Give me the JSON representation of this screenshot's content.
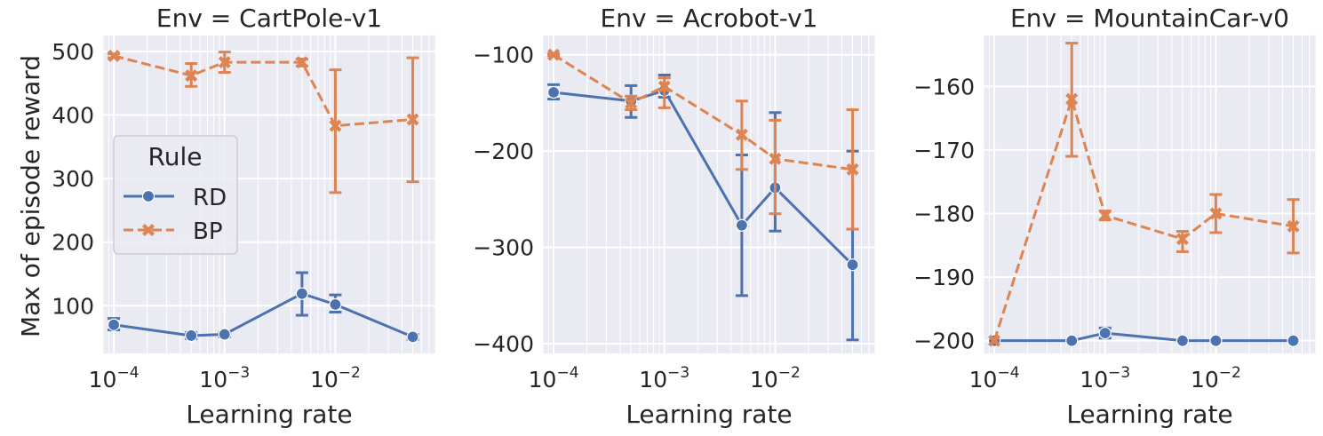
{
  "figure": {
    "ylabel": "Max of episode reward",
    "legend": {
      "title": "Rule",
      "entries": [
        "RD",
        "BP"
      ]
    },
    "colors": {
      "RD": "#4c72b0",
      "BP": "#dd8452",
      "background": "#eaeaf2",
      "grid": "#ffffff"
    }
  },
  "chart_data": [
    {
      "type": "line",
      "title": "Env = CartPole-v1",
      "xlabel": "Learning rate",
      "ylabel": "Max of episode reward",
      "xscale": "log",
      "xlim": [
        8e-05,
        0.08
      ],
      "ylim": [
        25,
        525
      ],
      "xticks": [
        {
          "value": 0.0001,
          "base": "10",
          "exp": "−4"
        },
        {
          "value": 0.001,
          "base": "10",
          "exp": "−3"
        },
        {
          "value": 0.01,
          "base": "10",
          "exp": "−2"
        }
      ],
      "yticks": [
        {
          "value": 100,
          "label": "100"
        },
        {
          "value": 200,
          "label": "200"
        },
        {
          "value": 300,
          "label": "300"
        },
        {
          "value": 400,
          "label": "400"
        },
        {
          "value": 500,
          "label": "500"
        }
      ],
      "x": [
        0.0001,
        0.0005,
        0.001,
        0.005,
        0.01,
        0.05
      ],
      "legend_position": "center-left",
      "series": [
        {
          "name": "RD",
          "values": [
            70,
            53,
            55,
            119,
            102,
            51
          ],
          "lower": [
            62,
            48,
            51,
            85,
            90,
            47
          ],
          "upper": [
            80,
            58,
            58,
            152,
            117,
            55
          ]
        },
        {
          "name": "BP",
          "values": [
            493,
            462,
            483,
            483,
            383,
            393
          ],
          "lower": [
            490,
            445,
            467,
            477,
            278,
            295
          ],
          "upper": [
            496,
            481,
            499,
            488,
            471,
            490
          ]
        }
      ]
    },
    {
      "type": "line",
      "title": "Env = Acrobot-v1",
      "xlabel": "Learning rate",
      "ylabel": "",
      "xscale": "log",
      "xlim": [
        8e-05,
        0.08
      ],
      "ylim": [
        -410,
        -80
      ],
      "xticks": [
        {
          "value": 0.0001,
          "base": "10",
          "exp": "−4"
        },
        {
          "value": 0.001,
          "base": "10",
          "exp": "−3"
        },
        {
          "value": 0.01,
          "base": "10",
          "exp": "−2"
        }
      ],
      "yticks": [
        {
          "value": -100,
          "label": "−100"
        },
        {
          "value": -200,
          "label": "−200"
        },
        {
          "value": -300,
          "label": "−300"
        },
        {
          "value": -400,
          "label": "−400"
        }
      ],
      "x": [
        0.0001,
        0.0005,
        0.001,
        0.005,
        0.01,
        0.05
      ],
      "series": [
        {
          "name": "RD",
          "values": [
            -139,
            -148,
            -137,
            -277,
            -238,
            -318
          ],
          "lower": [
            -146,
            -165,
            -144,
            -350,
            -283,
            -396
          ],
          "upper": [
            -131,
            -132,
            -121,
            -204,
            -160,
            -200
          ]
        },
        {
          "name": "BP",
          "values": [
            -100,
            -150,
            -133,
            -183,
            -208,
            -219
          ],
          "lower": [
            -101,
            -157,
            -155,
            -219,
            -265,
            -281
          ],
          "upper": [
            -99,
            -143,
            -124,
            -148,
            -168,
            -157
          ]
        }
      ]
    },
    {
      "type": "line",
      "title": "Env = MountainCar-v0",
      "xlabel": "Learning rate",
      "ylabel": "",
      "xscale": "log",
      "xlim": [
        8e-05,
        0.08
      ],
      "ylim": [
        -202,
        -152
      ],
      "xticks": [
        {
          "value": 0.0001,
          "base": "10",
          "exp": "−4"
        },
        {
          "value": 0.001,
          "base": "10",
          "exp": "−3"
        },
        {
          "value": 0.01,
          "base": "10",
          "exp": "−2"
        }
      ],
      "yticks": [
        {
          "value": -160,
          "label": "−160"
        },
        {
          "value": -170,
          "label": "−170"
        },
        {
          "value": -180,
          "label": "−180"
        },
        {
          "value": -190,
          "label": "−190"
        },
        {
          "value": -200,
          "label": "−200"
        }
      ],
      "x": [
        0.0001,
        0.0005,
        0.001,
        0.005,
        0.01,
        0.05
      ],
      "series": [
        {
          "name": "RD",
          "values": [
            -200,
            -200,
            -198.8,
            -200,
            -200,
            -200
          ],
          "lower": [
            -200,
            -200,
            -199.6,
            -200,
            -200,
            -200
          ],
          "upper": [
            -200,
            -200,
            -198,
            -200,
            -200,
            -200
          ]
        },
        {
          "name": "BP",
          "values": [
            -200,
            -162,
            -180.3,
            -184,
            -180,
            -182
          ],
          "lower": [
            -200,
            -171,
            -181,
            -186,
            -183,
            -186.2
          ],
          "upper": [
            -200,
            -153.2,
            -179.6,
            -182.8,
            -177,
            -177.8
          ]
        }
      ]
    }
  ]
}
